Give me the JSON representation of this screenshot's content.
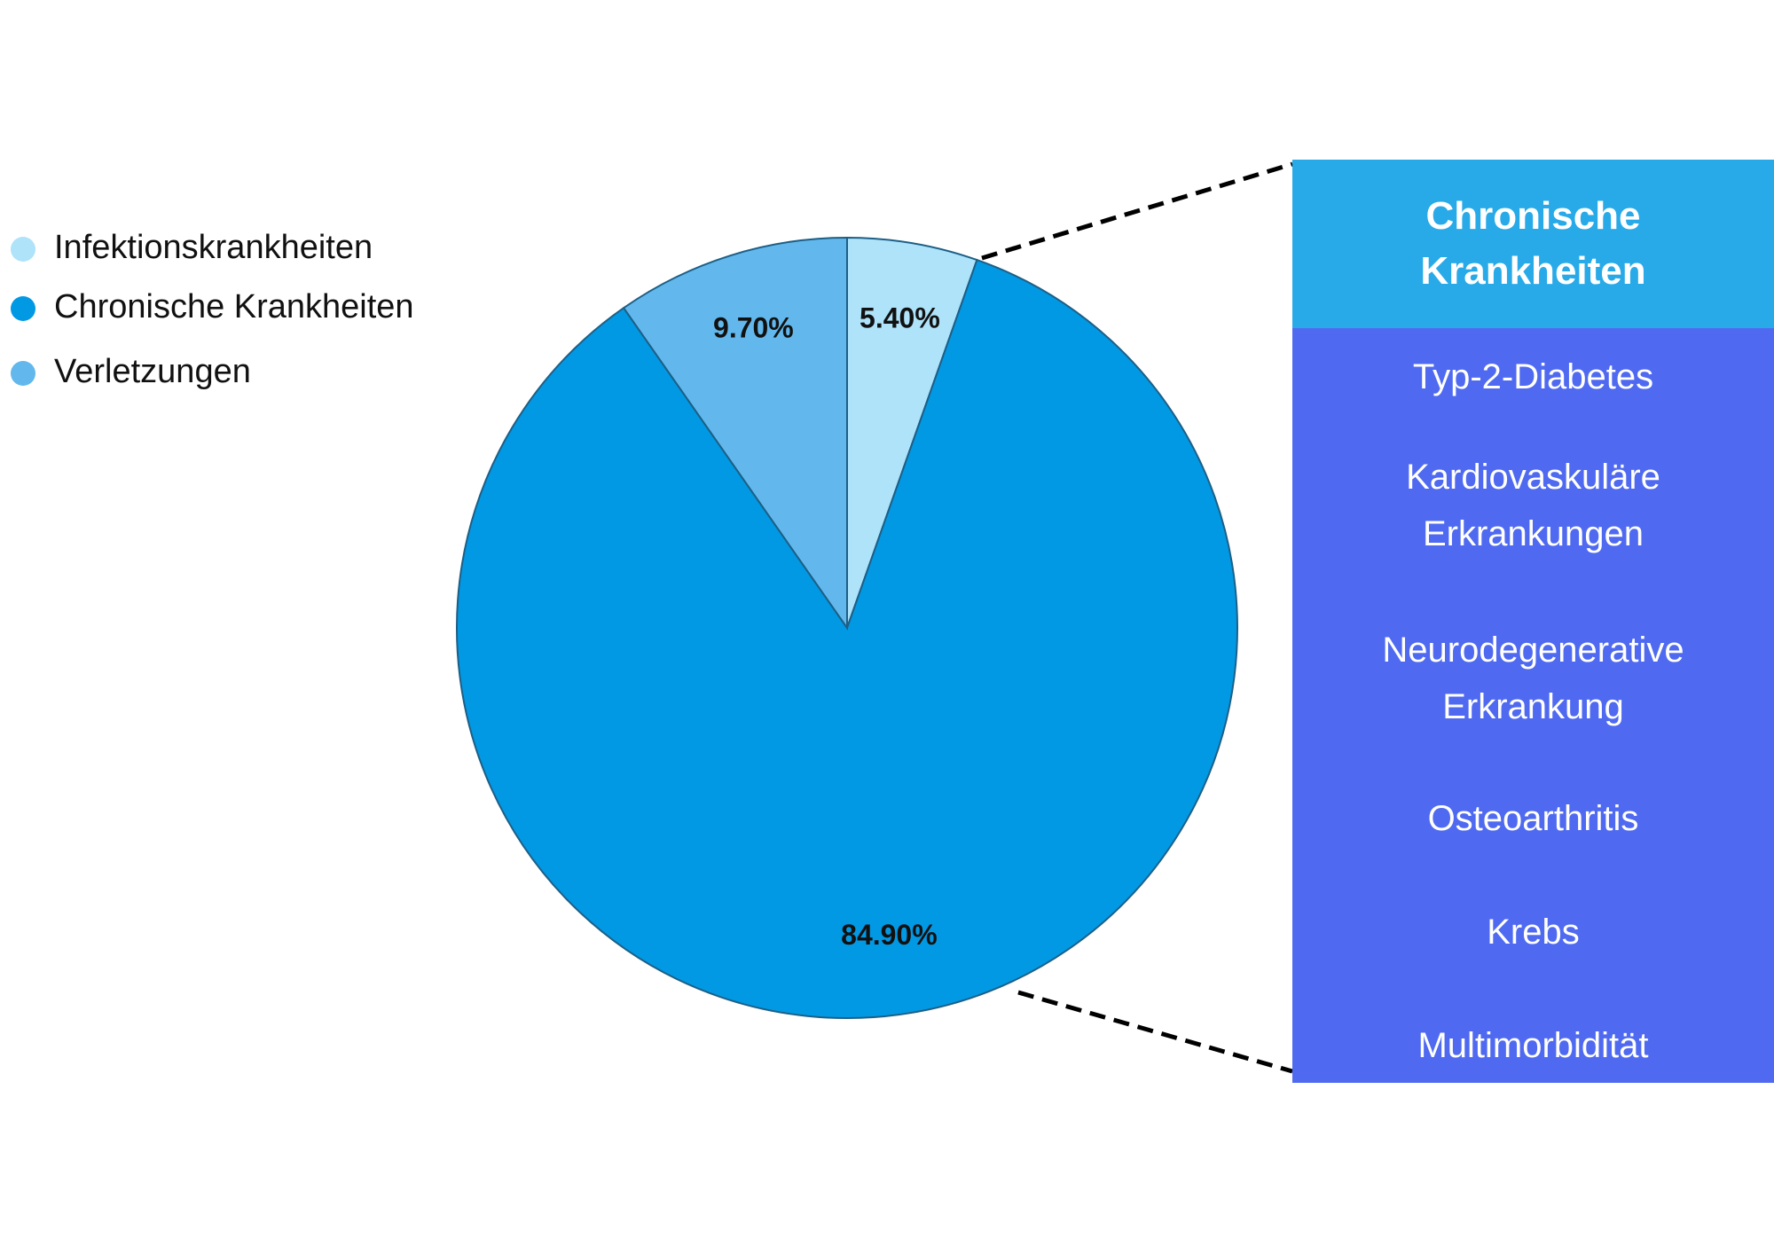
{
  "chart_data": {
    "type": "pie",
    "categories": [
      "Infektionskrankheiten",
      "Chronische Krankheiten",
      "Verletzungen"
    ],
    "values": [
      5.4,
      84.9,
      9.7
    ],
    "value_labels": [
      "5.40%",
      "84.90%",
      "9.70%"
    ],
    "colors": [
      "#aee3fa",
      "#0299e4",
      "#62b8ec"
    ]
  },
  "panel": {
    "title": "Chronische Krankheiten",
    "items": [
      "Typ-2-Diabetes",
      "Kardiovaskuläre Erkrankungen",
      "Neurodegenerative Erkrankung",
      "Osteoarthritis",
      "Krebs",
      "Multimorbidität"
    ]
  }
}
